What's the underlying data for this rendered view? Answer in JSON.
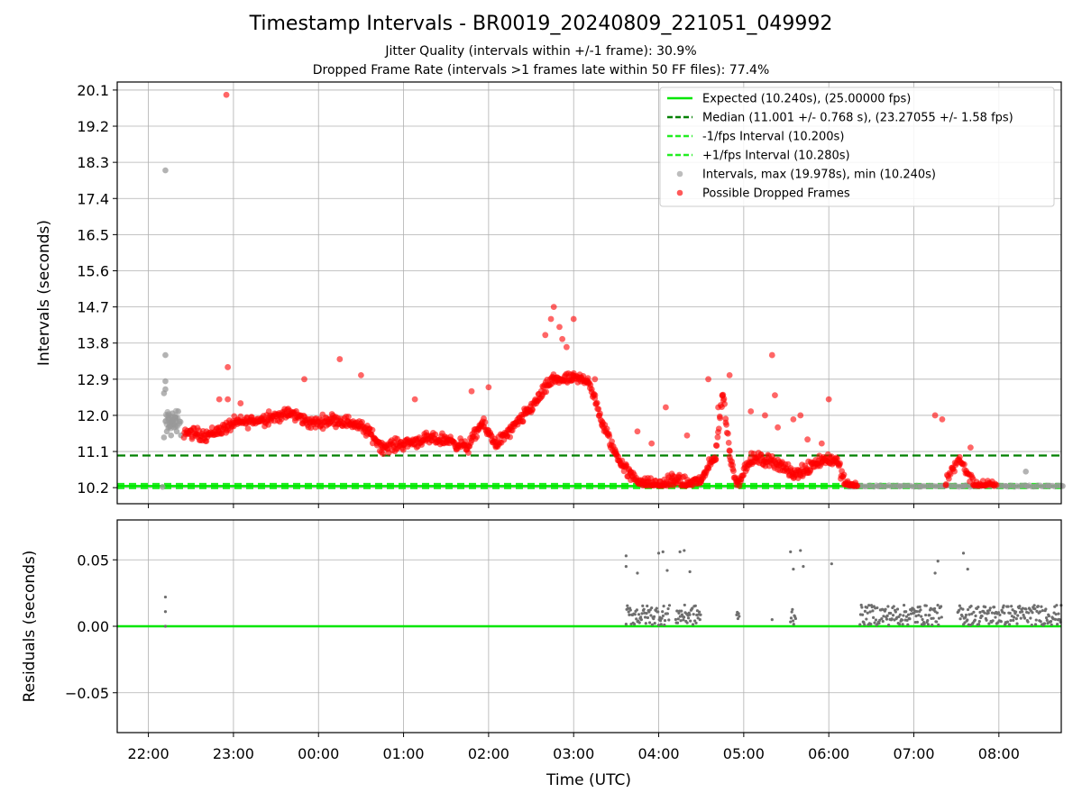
{
  "title": "Timestamp Intervals - BR0019_20240809_221051_049992",
  "subtitle1": "Jitter Quality (intervals within +/-1 frame): 30.9%",
  "subtitle2": "Dropped Frame Rate (intervals >1 frames late within 50 FF files): 77.4%",
  "colors": {
    "expected": "#00e600",
    "median": "#008000",
    "band": "#22ee22",
    "intervals": "#9a9a9a",
    "dropped": "#ff0000",
    "residual_points": "#6e6e6e"
  },
  "chart_data": [
    {
      "type": "scatter",
      "ylabel": "Intervals (seconds)",
      "xlabel": "",
      "ylim": [
        9.8,
        20.3
      ],
      "yticks": [
        "10.2",
        "11.1",
        "12.0",
        "12.9",
        "13.8",
        "14.7",
        "15.6",
        "16.5",
        "17.4",
        "18.3",
        "19.2",
        "20.1"
      ],
      "grid": true,
      "legend_position": "top-right",
      "legend": [
        {
          "label": "Expected (10.240s), (25.00000 fps)",
          "style": "solid-line",
          "color_key": "expected"
        },
        {
          "label": "Median (11.001 +/- 0.768 s), (23.27055 +/- 1.58 fps)",
          "style": "dashed-line",
          "color_key": "median"
        },
        {
          "label": "-1/fps Interval (10.200s)",
          "style": "dashed-line",
          "color_key": "band"
        },
        {
          "label": "+1/fps Interval (10.280s)",
          "style": "dashed-line",
          "color_key": "band"
        },
        {
          "label": "Intervals, max (19.978s), min (10.240s)",
          "style": "marker",
          "color_key": "intervals"
        },
        {
          "label": "Possible Dropped Frames",
          "style": "marker",
          "color_key": "dropped"
        }
      ],
      "reference_lines": [
        {
          "name": "Expected",
          "y": 10.24,
          "style": "solid"
        },
        {
          "name": "Median",
          "y": 11.001,
          "style": "dashed"
        },
        {
          "name": "-1/fps Interval",
          "y": 10.2,
          "style": "dashed"
        },
        {
          "name": "+1/fps Interval",
          "y": 10.28,
          "style": "dashed"
        }
      ],
      "series": [
        {
          "name": "Intervals, max (19.978s), min (10.240s)",
          "points": [
            [
              "22:10",
              10.22
            ],
            [
              "22:11",
              11.45
            ],
            [
              "22:11",
              12.55
            ],
            [
              "22:12",
              12.65
            ],
            [
              "22:12",
              12.85
            ],
            [
              "22:12",
              13.5
            ],
            [
              "22:12",
              18.1
            ],
            [
              "22:13",
              11.6
            ],
            [
              "22:14",
              11.9
            ],
            [
              "22:15",
              11.8
            ],
            [
              "22:16",
              11.5
            ],
            [
              "22:17",
              12.05
            ],
            [
              "22:18",
              11.7
            ],
            [
              "22:19",
              11.95
            ],
            [
              "22:20",
              11.6
            ],
            [
              "22:21",
              12.1
            ],
            [
              "22:22",
              11.85
            ],
            [
              "22:23",
              11.5
            ],
            [
              "06:20",
              10.24
            ],
            [
              "06:35",
              10.24
            ],
            [
              "06:50",
              10.24
            ],
            [
              "07:05",
              10.24
            ],
            [
              "07:20",
              10.24
            ],
            [
              "07:35",
              10.24
            ],
            [
              "07:50",
              10.24
            ],
            [
              "08:05",
              10.24
            ],
            [
              "08:20",
              10.24
            ],
            [
              "08:19",
              10.6
            ],
            [
              "08:35",
              10.24
            ],
            [
              "08:45",
              10.24
            ]
          ]
        },
        {
          "name": "Possible Dropped Frames",
          "anchors": [
            [
              "22:25",
              11.6
            ],
            [
              "22:40",
              11.5
            ],
            [
              "22:55",
              11.7
            ],
            [
              "23:00",
              11.8
            ],
            [
              "23:20",
              11.9
            ],
            [
              "23:40",
              12.05
            ],
            [
              "23:55",
              11.8
            ],
            [
              "00:10",
              11.9
            ],
            [
              "00:25",
              11.8
            ],
            [
              "00:35",
              11.6
            ],
            [
              "00:45",
              11.2
            ],
            [
              "01:00",
              11.3
            ],
            [
              "01:15",
              11.4
            ],
            [
              "01:30",
              11.4
            ],
            [
              "01:45",
              11.2
            ],
            [
              "01:55",
              11.8
            ],
            [
              "02:05",
              11.3
            ],
            [
              "02:15",
              11.6
            ],
            [
              "02:30",
              12.2
            ],
            [
              "02:45",
              12.9
            ],
            [
              "03:00",
              12.9
            ],
            [
              "03:10",
              12.9
            ],
            [
              "03:20",
              11.8
            ],
            [
              "03:30",
              11.0
            ],
            [
              "03:40",
              10.5
            ],
            [
              "03:50",
              10.3
            ],
            [
              "04:00",
              10.25
            ],
            [
              "04:10",
              10.4
            ],
            [
              "04:20",
              10.3
            ],
            [
              "04:30",
              10.4
            ],
            [
              "04:40",
              11.0
            ],
            [
              "04:45",
              12.6
            ],
            [
              "04:50",
              11.0
            ],
            [
              "04:55",
              10.3
            ],
            [
              "05:05",
              10.9
            ],
            [
              "05:15",
              10.9
            ],
            [
              "05:25",
              10.8
            ],
            [
              "05:35",
              10.5
            ],
            [
              "05:45",
              10.7
            ],
            [
              "05:55",
              10.9
            ],
            [
              "06:05",
              10.9
            ],
            [
              "06:12",
              10.25
            ],
            [
              "06:20",
              10.24
            ]
          ],
          "anchors2": [
            [
              "07:22",
              10.3
            ],
            [
              "07:27",
              10.7
            ],
            [
              "07:32",
              10.9
            ],
            [
              "07:37",
              10.6
            ],
            [
              "07:42",
              10.3
            ],
            [
              "07:50",
              10.24
            ],
            [
              "07:58",
              10.24
            ]
          ],
          "outliers": [
            [
              "22:55",
              19.98
            ],
            [
              "22:56",
              13.2
            ],
            [
              "22:56",
              12.4
            ],
            [
              "22:50",
              12.4
            ],
            [
              "23:05",
              12.3
            ],
            [
              "23:25",
              12.1
            ],
            [
              "23:50",
              12.9
            ],
            [
              "00:15",
              13.4
            ],
            [
              "00:30",
              13.0
            ],
            [
              "01:08",
              12.4
            ],
            [
              "01:48",
              12.6
            ],
            [
              "02:00",
              12.7
            ],
            [
              "02:40",
              14.0
            ],
            [
              "02:44",
              14.4
            ],
            [
              "02:46",
              14.7
            ],
            [
              "02:50",
              14.2
            ],
            [
              "02:52",
              13.9
            ],
            [
              "02:55",
              13.7
            ],
            [
              "03:00",
              14.4
            ],
            [
              "03:15",
              12.9
            ],
            [
              "03:45",
              11.6
            ],
            [
              "03:55",
              11.3
            ],
            [
              "04:05",
              12.2
            ],
            [
              "04:20",
              11.5
            ],
            [
              "04:35",
              12.9
            ],
            [
              "04:42",
              12.2
            ],
            [
              "04:50",
              13.0
            ],
            [
              "05:05",
              12.1
            ],
            [
              "05:15",
              12.0
            ],
            [
              "05:20",
              13.5
            ],
            [
              "05:22",
              12.5
            ],
            [
              "05:24",
              11.7
            ],
            [
              "05:35",
              11.9
            ],
            [
              "05:40",
              12.0
            ],
            [
              "05:45",
              11.4
            ],
            [
              "05:55",
              11.3
            ],
            [
              "06:00",
              12.4
            ],
            [
              "07:15",
              12.0
            ],
            [
              "07:20",
              11.9
            ],
            [
              "07:40",
              11.2
            ]
          ]
        }
      ]
    },
    {
      "type": "scatter",
      "ylabel": "Residuals (seconds)",
      "xlabel": "Time (UTC)",
      "ylim": [
        -0.08,
        0.08
      ],
      "yticks": [
        "0.05",
        "0.00",
        "−0.05"
      ],
      "ytick_values": [
        0.05,
        0.0,
        -0.05
      ],
      "xrange": [
        "21:38",
        "08:44"
      ],
      "xticks": [
        "22:00",
        "23:00",
        "00:00",
        "01:00",
        "02:00",
        "03:00",
        "04:00",
        "05:00",
        "06:00",
        "07:00",
        "08:00"
      ],
      "grid": true,
      "zero_line": 0.0,
      "clusters": [
        [
          "03:37",
          "04:08",
          0.016
        ],
        [
          "04:12",
          "04:30",
          0.016
        ],
        [
          "04:55",
          "04:57",
          0.012
        ],
        [
          "05:33",
          "05:37",
          0.016
        ],
        [
          "06:22",
          "07:20",
          0.016
        ],
        [
          "07:31",
          "08:44",
          0.016
        ]
      ],
      "outliers": [
        [
          "22:12",
          0.022
        ],
        [
          "22:12",
          0.011
        ],
        [
          "22:12",
          0.0
        ],
        [
          "03:37",
          0.053
        ],
        [
          "03:37",
          0.045
        ],
        [
          "03:45",
          0.04
        ],
        [
          "04:00",
          0.055
        ],
        [
          "04:03",
          0.056
        ],
        [
          "04:06",
          0.042
        ],
        [
          "04:15",
          0.056
        ],
        [
          "04:18",
          0.057
        ],
        [
          "04:22",
          0.041
        ],
        [
          "05:20",
          0.005
        ],
        [
          "05:33",
          0.056
        ],
        [
          "05:35",
          0.043
        ],
        [
          "05:40",
          0.057
        ],
        [
          "05:42",
          0.045
        ],
        [
          "06:02",
          0.047
        ],
        [
          "07:15",
          0.04
        ],
        [
          "07:17",
          0.049
        ],
        [
          "07:35",
          0.055
        ],
        [
          "07:38",
          0.043
        ]
      ]
    }
  ]
}
